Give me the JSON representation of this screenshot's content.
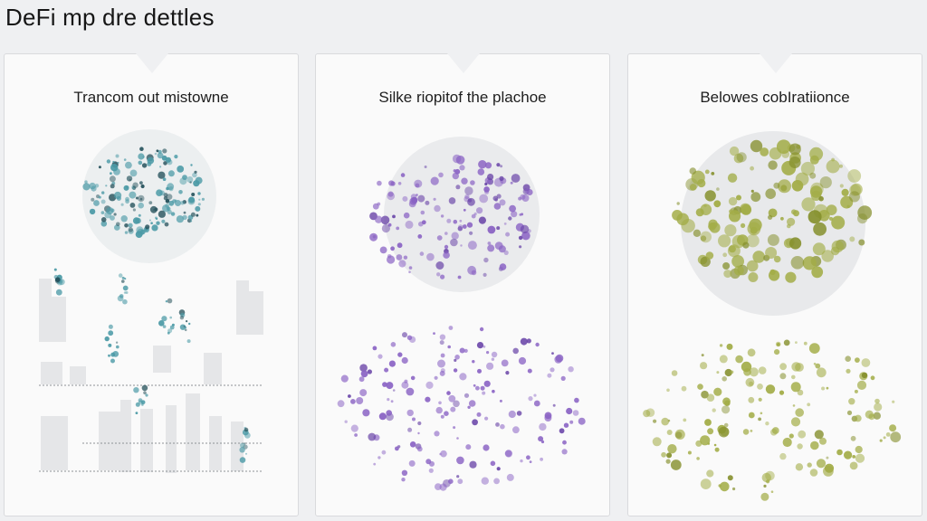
{
  "page": {
    "title": "DeFi mp dre dettles"
  },
  "panels": [
    {
      "title": "Trancom out mistowne",
      "color": "#4b9aa6",
      "dark": "#24505a",
      "style": "bars"
    },
    {
      "title": "Silke riopitof the plachoe",
      "color": "#8a63c4",
      "dark": "#6a45a8",
      "style": "scatter"
    },
    {
      "title": "Belowes cobIratiionce",
      "color": "#a3ad48",
      "dark": "#86902e",
      "style": "bubbles"
    }
  ]
}
